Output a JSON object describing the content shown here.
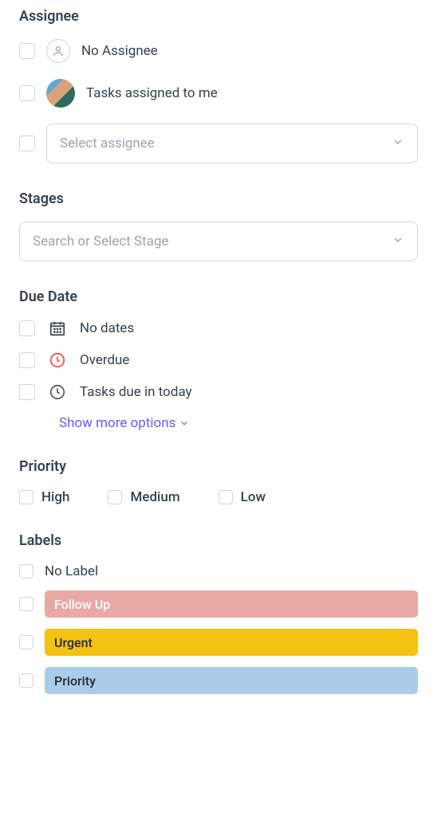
{
  "assignee": {
    "title": "Assignee",
    "no_assignee": "No Assignee",
    "tasks_me": "Tasks assigned to me",
    "select_placeholder": "Select assignee"
  },
  "stages": {
    "title": "Stages",
    "placeholder": "Search or Select Stage"
  },
  "due": {
    "title": "Due Date",
    "no_dates": "No dates",
    "overdue": "Overdue",
    "due_today": "Tasks due in today",
    "show_more": "Show more options",
    "overdue_icon_color": "#ef4444",
    "clock_icon_color": "#4b5563",
    "calendar_icon_color": "#374151"
  },
  "priority": {
    "title": "Priority",
    "high": "High",
    "medium": "Medium",
    "low": "Low"
  },
  "labels": {
    "title": "Labels",
    "no_label": "No Label",
    "items": [
      {
        "name": "Follow Up",
        "bg": "#e8a9a4",
        "fg": "#ffffff"
      },
      {
        "name": "Urgent",
        "bg": "#f5c211",
        "fg": "#1f2937"
      },
      {
        "name": "Priority",
        "bg": "#a9cde8",
        "fg": "#1f2937"
      }
    ]
  },
  "colors": {
    "link": "#635bff"
  }
}
